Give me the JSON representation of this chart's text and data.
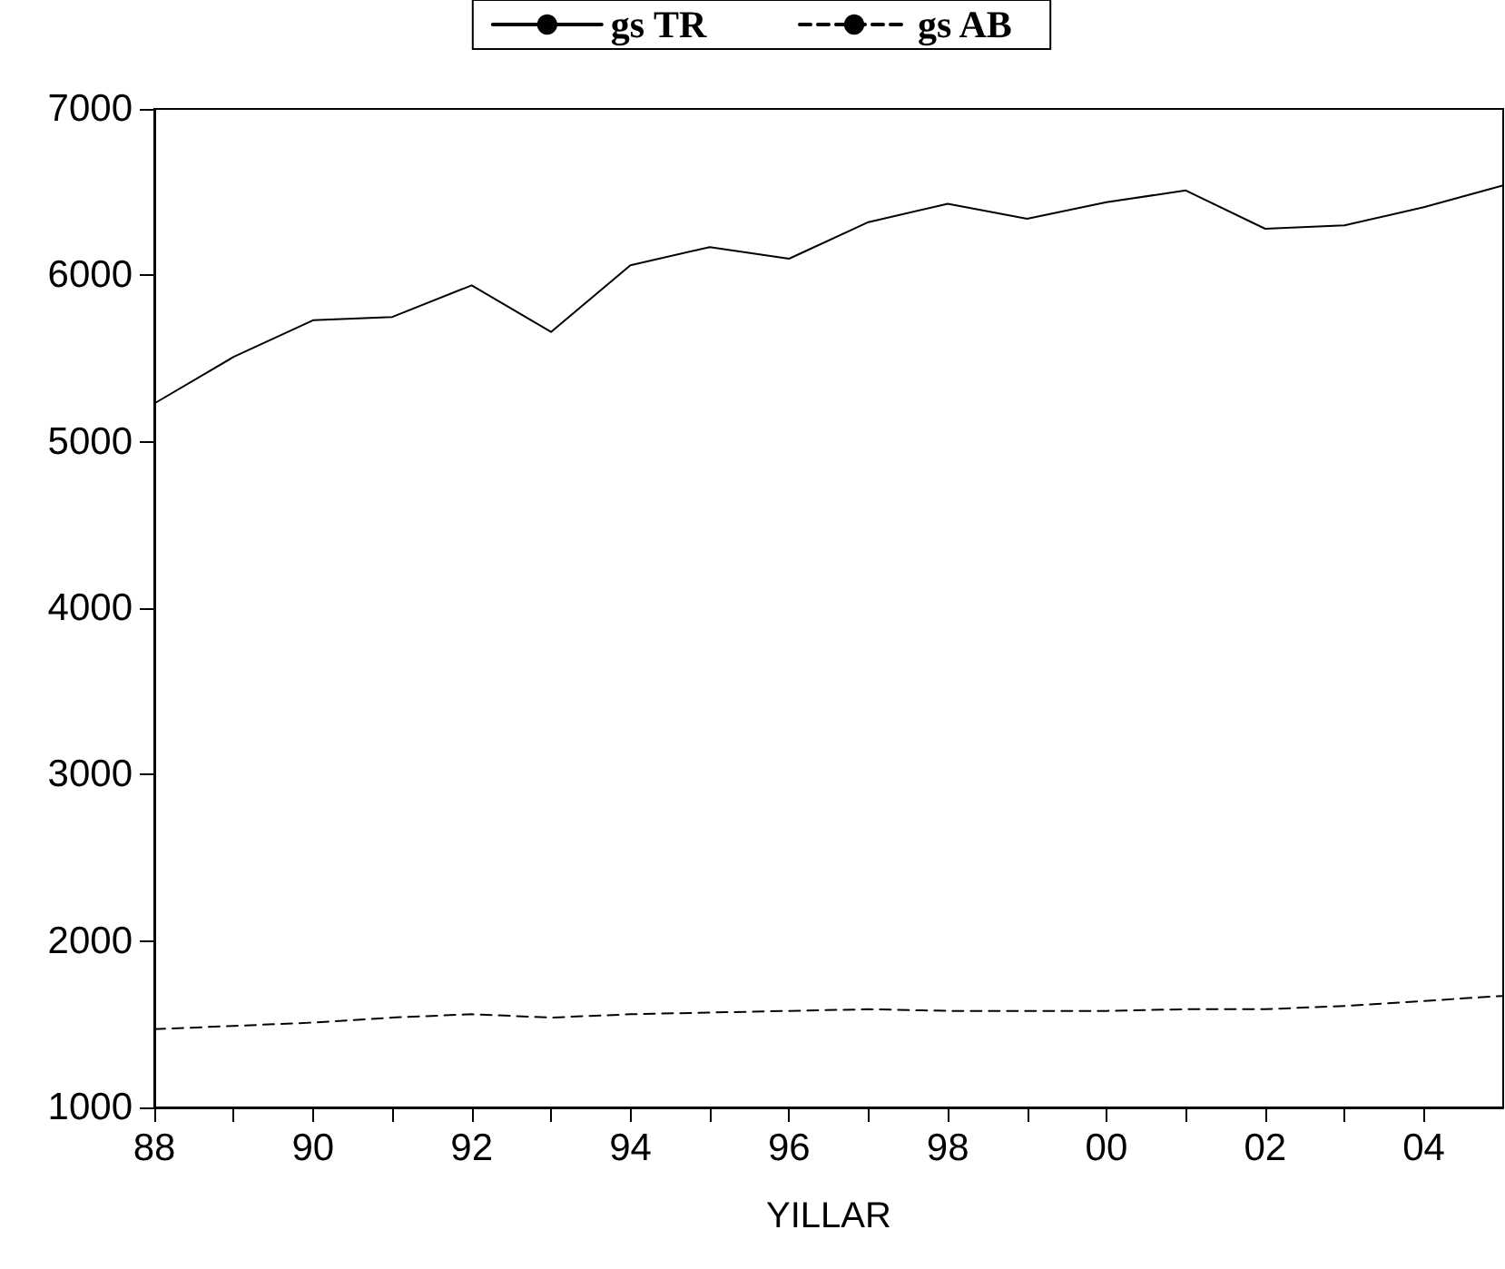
{
  "chart_data": {
    "type": "line",
    "xlabel": "YILLAR",
    "x": [
      1988,
      1989,
      1990,
      1991,
      1992,
      1993,
      1994,
      1995,
      1996,
      1997,
      1998,
      1999,
      2000,
      2001,
      2002,
      2003,
      2004,
      2005
    ],
    "series": [
      {
        "name": "gs TR",
        "color": "#000000",
        "line_style": "solid",
        "values": [
          5230,
          5510,
          5730,
          5750,
          5940,
          5660,
          6060,
          6170,
          6100,
          6320,
          6430,
          6340,
          6440,
          6510,
          6280,
          6300,
          6410,
          6540
        ]
      },
      {
        "name": "gs AB",
        "color": "#000000",
        "line_style": "dashed",
        "values": [
          1470,
          1490,
          1510,
          1540,
          1560,
          1540,
          1560,
          1570,
          1580,
          1590,
          1580,
          1580,
          1580,
          1590,
          1590,
          1610,
          1640,
          1670
        ]
      }
    ],
    "xlim": [
      1988,
      2005
    ],
    "xticks": [
      {
        "value": 1988,
        "label": "88"
      },
      {
        "value": 1989,
        "label": null
      },
      {
        "value": 1990,
        "label": "90"
      },
      {
        "value": 1991,
        "label": null
      },
      {
        "value": 1992,
        "label": "92"
      },
      {
        "value": 1993,
        "label": null
      },
      {
        "value": 1994,
        "label": "94"
      },
      {
        "value": 1995,
        "label": null
      },
      {
        "value": 1996,
        "label": "96"
      },
      {
        "value": 1997,
        "label": null
      },
      {
        "value": 1998,
        "label": "98"
      },
      {
        "value": 1999,
        "label": null
      },
      {
        "value": 2000,
        "label": "00"
      },
      {
        "value": 2001,
        "label": null
      },
      {
        "value": 2002,
        "label": "02"
      },
      {
        "value": 2003,
        "label": null
      },
      {
        "value": 2004,
        "label": "04"
      }
    ],
    "ylim": [
      1000,
      7000
    ],
    "yticks": [
      1000,
      2000,
      3000,
      4000,
      5000,
      6000,
      7000
    ],
    "grid": false,
    "legend": "top",
    "marker": "none"
  }
}
